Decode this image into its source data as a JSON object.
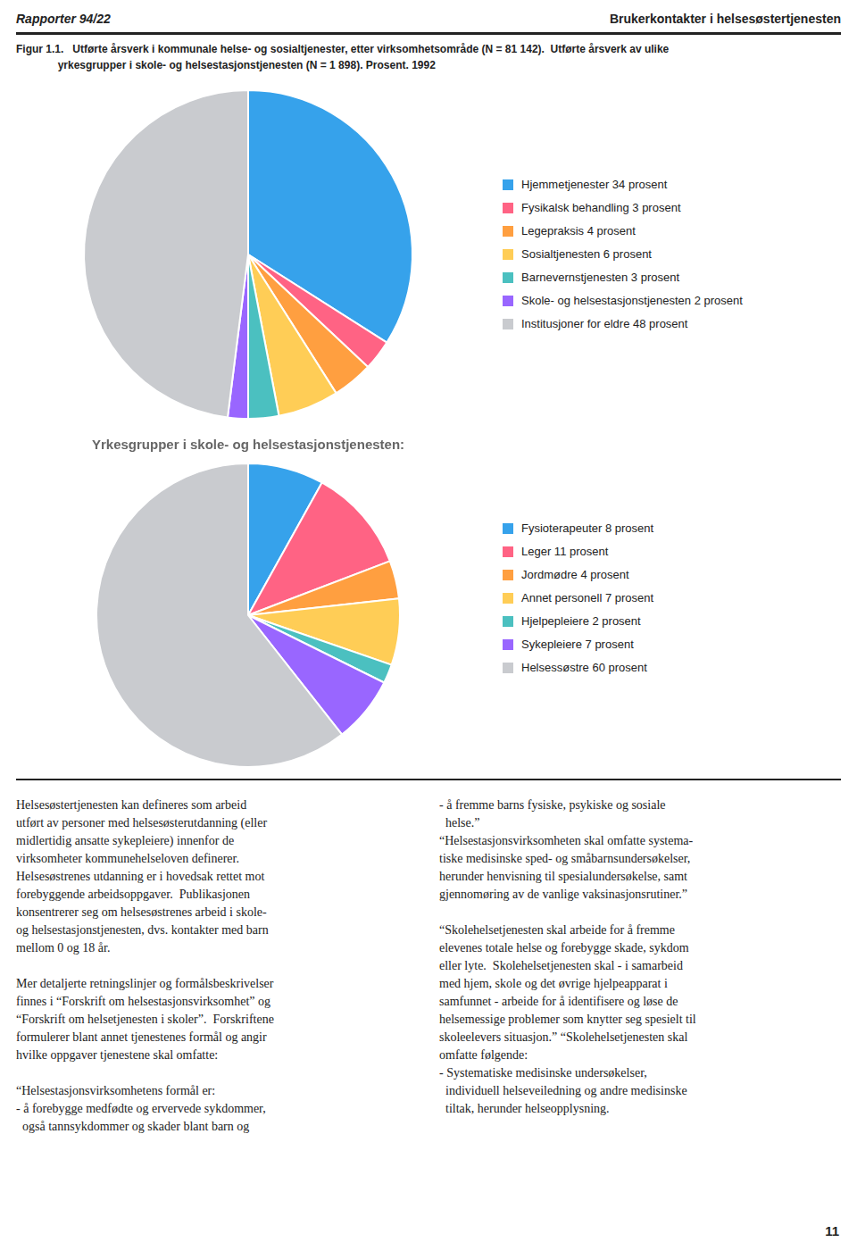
{
  "header_left": "Rapporter 94/22",
  "header_right": "Brukerkontakter i helsesøstertjenesten",
  "caption": [
    "Figur 1.1.   Utførte årsverk i kommunale helse- og sosialtjenester, etter virksomhetsområde (N = 81 142).  Utførte årsverk av ulike",
    "              yrkesgrupper i skole- og helsestasjonstjenesten (N = 1 898). Prosent. 1992"
  ],
  "chart_data": [
    {
      "type": "pie",
      "categories": [
        "Hjemmetjenester  34 prosent",
        "Fysikalsk behandling  3 prosent",
        "Legepraksis  4 prosent",
        "Sosialtjenesten  6 prosent",
        "Barnevernstjenesten  3 prosent",
        "Skole- og helsestasjonstjenesten  2 prosent",
        "Institusjoner for eldre  48 prosent"
      ],
      "values": [
        34,
        3,
        4,
        6,
        3,
        2,
        48
      ]
    },
    {
      "type": "pie",
      "title": "Yrkesgrupper i skole- og helsestasjonstjenesten:",
      "categories": [
        "Fysioterapeuter  8 prosent",
        "Leger  11 prosent",
        "Jordmødre  4 prosent",
        "Annet personell  7 prosent",
        "Hjelpepleiere  2 prosent",
        "Sykepleiere  7 prosent",
        "Helsessøstre  60 prosent"
      ],
      "values": [
        8,
        11,
        4,
        7,
        2,
        7,
        60
      ]
    }
  ],
  "body_left": [
    "Helsesøstertjenesten kan defineres som arbeid\nutført av personer med helsesøsterutdanning (eller\nmidlertidig ansatte sykepleiere) innenfor de\nvirksomheter kommunehelseloven definerer.\nHelsesøstrenes utdanning er i hovedsak rettet mot\nforebyggende arbeidsoppgaver.  Publikasjonen\nkonsentrerer seg om helsesøstrenes arbeid i skole-\nog helsestasjonstjenesten, dvs. kontakter med barn\nmellom 0 og 18 år.",
    "Mer detaljerte retningslinjer og formålsbeskrivelser\nfinnes i “Forskrift om helsestasjonsvirksomhet” og\n“Forskrift om helsetjenesten i skoler”.  Forskriftene\nformulerer blant annet tjenestenes formål og angir\nhvilke oppgaver tjenestene skal omfatte:",
    "“Helsestasjonsvirksomhetens formål er:\n- å forebygge medfødte og ervervede sykdommer,\n  også tannsykdommer og skader blant barn og"
  ],
  "body_right": [
    "- å fremme barns fysiske, psykiske og sosiale\n  helse.”\n“Helsestasjonsvirksomheten skal omfatte systema-\ntiske medisinske sped- og småbarnsundersøkelser,\nherunder henvisning til spesialundersøkelse, samt\ngjennomøring av de vanlige vaksinasjonsrutiner.”",
    "“Skolehelsetjenesten skal arbeide for å fremme\nelevenes totale helse og forebygge skade, sykdom\neller lyte.  Skolehelsetjenesten skal - i samarbeid\nmed hjem, skole og det øvrige hjelpeapparat i\nsamfunnet - arbeide for å identifisere og løse de\nhelsemessige problemer som knytter seg spesielt til\nskoleelevers situasjon.” “Skolehelsetjenesten skal\nomfatte følgende:\n- Systematiske medisinske undersøkelser,\n  individuell helseveiledning og andre medisinske\n  tiltak, herunder helseopplysning."
  ],
  "page_number": "11"
}
